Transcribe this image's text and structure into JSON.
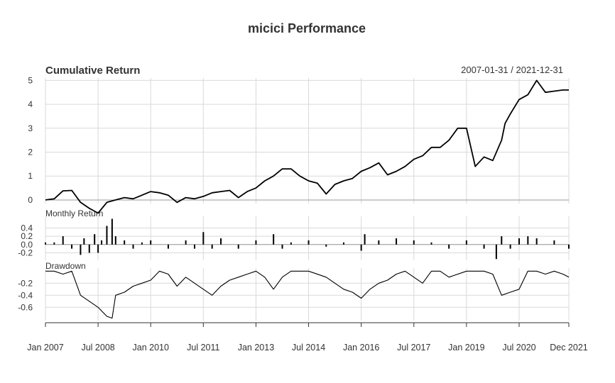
{
  "title": "micici Performance",
  "date_range": "2007-01-31 / 2021-12-31",
  "colors": {
    "line": "#000000",
    "grid": "#d9d9d9",
    "axis": "#333333",
    "zero_line": "#999999"
  },
  "x_ticks": [
    {
      "label": "Jan 2007",
      "t": 2007.0
    },
    {
      "label": "Jul 2008",
      "t": 2008.5
    },
    {
      "label": "Jan 2010",
      "t": 2010.0
    },
    {
      "label": "Jul 2011",
      "t": 2011.5
    },
    {
      "label": "Jan 2013",
      "t": 2013.0
    },
    {
      "label": "Jul 2014",
      "t": 2014.5
    },
    {
      "label": "Jan 2016",
      "t": 2016.0
    },
    {
      "label": "Jul 2017",
      "t": 2017.5
    },
    {
      "label": "Jan 2019",
      "t": 2019.0
    },
    {
      "label": "Jul 2020",
      "t": 2020.5
    },
    {
      "label": "Dec 2021",
      "t": 2021.917
    }
  ],
  "chart_data": [
    {
      "type": "line",
      "panel": "cumulative",
      "title": "Cumulative Return",
      "ylim": [
        -0.15,
        5.1
      ],
      "yticks": [
        0,
        1,
        2,
        3,
        4,
        5
      ],
      "grid": true,
      "x": [
        2007.0,
        2007.25,
        2007.5,
        2007.75,
        2008.0,
        2008.25,
        2008.5,
        2008.75,
        2009.0,
        2009.25,
        2009.5,
        2009.75,
        2010.0,
        2010.25,
        2010.5,
        2010.75,
        2011.0,
        2011.25,
        2011.5,
        2011.75,
        2012.0,
        2012.25,
        2012.5,
        2012.75,
        2013.0,
        2013.25,
        2013.5,
        2013.75,
        2014.0,
        2014.25,
        2014.5,
        2014.75,
        2015.0,
        2015.25,
        2015.5,
        2015.75,
        2016.0,
        2016.25,
        2016.5,
        2016.75,
        2017.0,
        2017.25,
        2017.5,
        2017.75,
        2018.0,
        2018.25,
        2018.5,
        2018.75,
        2019.0,
        2019.25,
        2019.5,
        2019.75,
        2020.0,
        2020.1,
        2020.25,
        2020.5,
        2020.75,
        2021.0,
        2021.25,
        2021.5,
        2021.75,
        2021.85,
        2021.917
      ],
      "y": [
        0.0,
        0.05,
        0.38,
        0.4,
        -0.1,
        -0.35,
        -0.55,
        -0.1,
        0.0,
        0.1,
        0.05,
        0.2,
        0.35,
        0.3,
        0.2,
        -0.1,
        0.1,
        0.05,
        0.15,
        0.3,
        0.35,
        0.4,
        0.1,
        0.35,
        0.5,
        0.8,
        1.0,
        1.3,
        1.3,
        1.0,
        0.8,
        0.7,
        0.25,
        0.65,
        0.8,
        0.9,
        1.2,
        1.35,
        1.55,
        1.05,
        1.2,
        1.4,
        1.7,
        1.85,
        2.2,
        2.2,
        2.5,
        3.0,
        3.0,
        1.4,
        1.8,
        1.65,
        2.5,
        3.2,
        3.6,
        4.2,
        4.4,
        5.0,
        4.5,
        4.55,
        4.6,
        4.6,
        4.6
      ]
    },
    {
      "type": "bar",
      "panel": "monthly",
      "title": "Monthly Return",
      "ylim": [
        -0.38,
        0.68
      ],
      "yticks": [
        -0.2,
        0.0,
        0.2,
        0.4
      ],
      "ytick_labels": [
        "-0.2",
        "0.0",
        "0.2",
        "0.4"
      ],
      "grid": true,
      "x": [
        2007.0,
        2007.25,
        2007.5,
        2007.75,
        2008.0,
        2008.1,
        2008.25,
        2008.4,
        2008.5,
        2008.6,
        2008.75,
        2008.9,
        2009.0,
        2009.25,
        2009.5,
        2009.75,
        2010.0,
        2010.5,
        2011.0,
        2011.25,
        2011.5,
        2011.75,
        2012.0,
        2012.5,
        2013.0,
        2013.5,
        2013.75,
        2014.0,
        2014.5,
        2015.0,
        2015.5,
        2016.0,
        2016.1,
        2016.5,
        2017.0,
        2017.5,
        2018.0,
        2018.5,
        2019.0,
        2019.5,
        2019.85,
        2020.0,
        2020.25,
        2020.5,
        2020.75,
        2021.0,
        2021.5,
        2021.917
      ],
      "values": [
        0.05,
        0.05,
        0.2,
        -0.1,
        -0.25,
        0.15,
        -0.2,
        0.25,
        -0.2,
        0.1,
        0.45,
        0.62,
        0.2,
        0.1,
        -0.1,
        0.05,
        0.1,
        -0.1,
        0.1,
        -0.1,
        0.3,
        -0.1,
        0.15,
        -0.1,
        0.1,
        0.25,
        -0.1,
        0.05,
        0.1,
        -0.05,
        0.05,
        -0.15,
        0.25,
        0.1,
        0.15,
        0.1,
        0.05,
        -0.1,
        0.1,
        -0.1,
        -0.35,
        0.2,
        -0.1,
        0.15,
        0.2,
        0.15,
        0.1,
        -0.1
      ]
    },
    {
      "type": "line",
      "panel": "drawdown",
      "title": "Drawdown",
      "ylim": [
        -0.82,
        0.05
      ],
      "yticks": [
        -0.2,
        -0.4,
        -0.6
      ],
      "ytick_labels": [
        "-0.2",
        "-0.4",
        "-0.6"
      ],
      "grid": true,
      "x": [
        2007.0,
        2007.25,
        2007.5,
        2007.75,
        2008.0,
        2008.25,
        2008.5,
        2008.75,
        2008.9,
        2009.0,
        2009.25,
        2009.5,
        2009.75,
        2010.0,
        2010.25,
        2010.5,
        2010.75,
        2011.0,
        2011.25,
        2011.5,
        2011.75,
        2012.0,
        2012.25,
        2012.5,
        2012.75,
        2013.0,
        2013.25,
        2013.5,
        2013.75,
        2014.0,
        2014.5,
        2015.0,
        2015.25,
        2015.5,
        2015.75,
        2016.0,
        2016.25,
        2016.5,
        2016.75,
        2017.0,
        2017.25,
        2017.5,
        2017.75,
        2018.0,
        2018.25,
        2018.5,
        2019.0,
        2019.5,
        2019.75,
        2020.0,
        2020.25,
        2020.5,
        2020.75,
        2021.0,
        2021.25,
        2021.5,
        2021.75,
        2021.917
      ],
      "y": [
        0.0,
        0.0,
        -0.05,
        0.0,
        -0.4,
        -0.5,
        -0.6,
        -0.75,
        -0.78,
        -0.4,
        -0.35,
        -0.25,
        -0.2,
        -0.15,
        0.0,
        -0.05,
        -0.25,
        -0.1,
        -0.2,
        -0.3,
        -0.4,
        -0.25,
        -0.15,
        -0.1,
        -0.05,
        0.0,
        -0.1,
        -0.3,
        -0.1,
        0.0,
        0.0,
        -0.1,
        -0.2,
        -0.3,
        -0.35,
        -0.45,
        -0.3,
        -0.2,
        -0.15,
        -0.05,
        0.0,
        -0.1,
        -0.2,
        0.0,
        0.0,
        -0.1,
        0.0,
        0.0,
        -0.05,
        -0.4,
        -0.35,
        -0.3,
        0.0,
        0.0,
        -0.05,
        0.0,
        -0.05,
        -0.1
      ]
    }
  ]
}
